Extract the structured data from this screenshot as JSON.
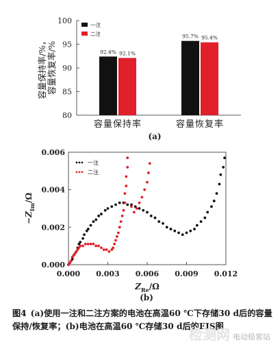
{
  "chart_data": [
    {
      "type": "bar",
      "panel_label": "(a)",
      "ylabel": "容量保持率/%，\n容量恢复率/%",
      "ylim": [
        80,
        100
      ],
      "yticks": [
        "80",
        "85",
        "90",
        "95",
        "100"
      ],
      "categories": [
        "容量保持率",
        "容量恢复率"
      ],
      "legend_position": "top-left",
      "series": [
        {
          "name": "一注",
          "color": "#111111",
          "values": [
            92.4,
            95.7
          ],
          "labels": [
            "92.4%",
            "95.7%"
          ]
        },
        {
          "name": "二注",
          "color": "#e0202a",
          "values": [
            92.1,
            95.4
          ],
          "labels": [
            "92.1%",
            "95.4%"
          ]
        }
      ]
    },
    {
      "type": "scatter",
      "panel_label": "(b)",
      "xlabel": "Z_Re/Ω",
      "ylabel": "−Z_Im/Ω",
      "xlim": [
        0,
        0.012
      ],
      "ylim": [
        0,
        0.006
      ],
      "xticks": [
        "0.000",
        "0.003",
        "0.006",
        "0.009",
        "0.012"
      ],
      "yticks": [
        "0.000",
        "0.002",
        "0.004",
        "0.006"
      ],
      "legend_position": "top-left",
      "series": [
        {
          "name": "一注",
          "color": "#111111",
          "points": [
            [
              0.0,
              0.0
            ],
            [
              0.0001,
              0.0001
            ],
            [
              0.0002,
              0.0002
            ],
            [
              0.0003,
              0.0003
            ],
            [
              0.0004,
              0.0005
            ],
            [
              0.0005,
              0.0006
            ],
            [
              0.0006,
              0.0007
            ],
            [
              0.0007,
              0.0009
            ],
            [
              0.0008,
              0.0011
            ],
            [
              0.0009,
              0.0012
            ],
            [
              0.0011,
              0.0014
            ],
            [
              0.0012,
              0.0016
            ],
            [
              0.0014,
              0.0018
            ],
            [
              0.0015,
              0.0019
            ],
            [
              0.0017,
              0.0021
            ],
            [
              0.0019,
              0.0023
            ],
            [
              0.0021,
              0.0024
            ],
            [
              0.0023,
              0.0026
            ],
            [
              0.0025,
              0.0027
            ],
            [
              0.0028,
              0.0029
            ],
            [
              0.003,
              0.003
            ],
            [
              0.0033,
              0.0031
            ],
            [
              0.0036,
              0.0032
            ],
            [
              0.0039,
              0.0033
            ],
            [
              0.0042,
              0.0033
            ],
            [
              0.0045,
              0.0032
            ],
            [
              0.0048,
              0.0032
            ],
            [
              0.0051,
              0.0031
            ],
            [
              0.0054,
              0.003
            ],
            [
              0.0057,
              0.0029
            ],
            [
              0.006,
              0.0028
            ],
            [
              0.0063,
              0.0026
            ],
            [
              0.0066,
              0.0025
            ],
            [
              0.0069,
              0.0023
            ],
            [
              0.0072,
              0.0022
            ],
            [
              0.0075,
              0.002
            ],
            [
              0.0078,
              0.0019
            ],
            [
              0.0081,
              0.0018
            ],
            [
              0.0084,
              0.0017
            ],
            [
              0.0087,
              0.0016
            ],
            [
              0.009,
              0.0017
            ],
            [
              0.0093,
              0.0018
            ],
            [
              0.0096,
              0.0019
            ],
            [
              0.0098,
              0.0021
            ],
            [
              0.0101,
              0.0023
            ],
            [
              0.0104,
              0.0025
            ],
            [
              0.0106,
              0.0028
            ],
            [
              0.0109,
              0.0031
            ],
            [
              0.0111,
              0.0034
            ],
            [
              0.0113,
              0.0038
            ],
            [
              0.0115,
              0.0043
            ],
            [
              0.0116,
              0.0048
            ],
            [
              0.0118,
              0.0052
            ],
            [
              0.0119,
              0.0057
            ]
          ]
        },
        {
          "name": "二注",
          "color": "#e0202a",
          "points": [
            [
              0.0,
              0.0
            ],
            [
              0.0001,
              0.0001
            ],
            [
              0.0002,
              0.0002
            ],
            [
              0.0003,
              0.0004
            ],
            [
              0.0004,
              0.0005
            ],
            [
              0.0005,
              0.0006
            ],
            [
              0.0006,
              0.0007
            ],
            [
              0.0007,
              0.0008
            ],
            [
              0.0008,
              0.0009
            ],
            [
              0.0009,
              0.001
            ],
            [
              0.0011,
              0.001
            ],
            [
              0.0013,
              0.0011
            ],
            [
              0.0015,
              0.0011
            ],
            [
              0.0017,
              0.0011
            ],
            [
              0.0019,
              0.0011
            ],
            [
              0.0021,
              0.001
            ],
            [
              0.0023,
              0.001
            ],
            [
              0.0025,
              0.0009
            ],
            [
              0.0027,
              0.0008
            ],
            [
              0.0029,
              0.0008
            ],
            [
              0.0031,
              0.0007
            ],
            [
              0.0033,
              0.0008
            ],
            [
              0.0034,
              0.0009
            ],
            [
              0.0035,
              0.0011
            ],
            [
              0.0036,
              0.0013
            ],
            [
              0.0037,
              0.0015
            ],
            [
              0.0038,
              0.0017
            ],
            [
              0.0039,
              0.002
            ],
            [
              0.004,
              0.0023
            ],
            [
              0.0041,
              0.0026
            ],
            [
              0.0042,
              0.0029
            ],
            [
              0.0043,
              0.0033
            ],
            [
              0.0043,
              0.0038
            ],
            [
              0.0044,
              0.0042
            ],
            [
              0.0044,
              0.0047
            ],
            [
              0.0045,
              0.0052
            ],
            [
              0.0045,
              0.0057
            ],
            [
              0.0048,
              0.0031
            ],
            [
              0.005,
              0.0028
            ],
            [
              0.0052,
              0.003
            ],
            [
              0.0054,
              0.0033
            ],
            [
              0.0056,
              0.0036
            ],
            [
              0.0058,
              0.004
            ],
            [
              0.006,
              0.0044
            ],
            [
              0.0061,
              0.0049
            ],
            [
              0.0062,
              0.0054
            ]
          ]
        }
      ]
    }
  ],
  "caption": {
    "figure_label": "图4",
    "text": "(a)使用一注和二注方案的电池在高温60 ℃下存储30 d后的容量保持/恢复率；(b)电池在高温60 ℃存储30 d后的EIS图"
  },
  "watermark": {
    "main": "检测网",
    "sub": "电动极客站"
  }
}
